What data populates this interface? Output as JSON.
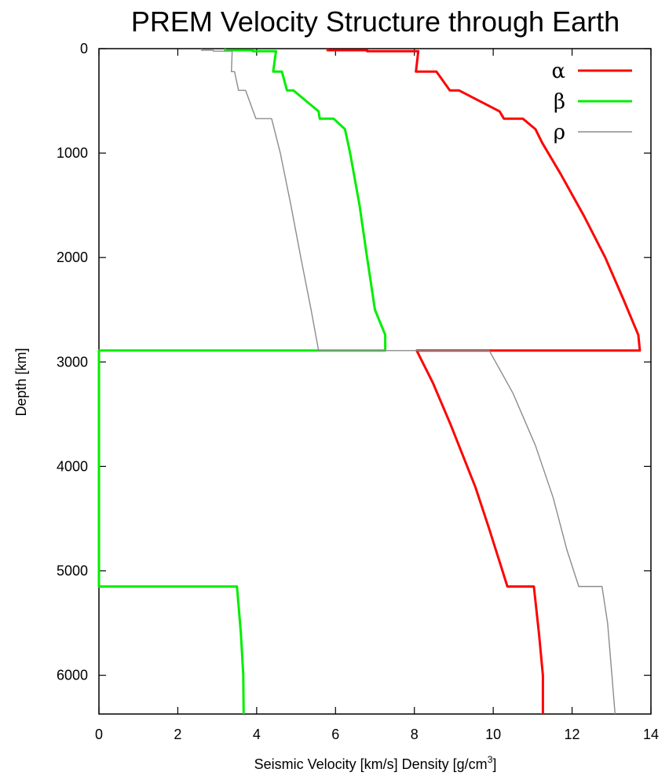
{
  "chart_data": {
    "type": "line",
    "title": "PREM Velocity Structure through Earth",
    "xlabel_main": "Seismic Velocity [km/s]  Density [g/cm",
    "xlabel_sup": "3",
    "xlabel_end": "]",
    "ylabel": "Depth [km]",
    "xlim": [
      0,
      14
    ],
    "ylim": [
      0,
      6371
    ],
    "y_inverted": true,
    "x_ticks": [
      0,
      2,
      4,
      6,
      8,
      10,
      12,
      14
    ],
    "y_ticks": [
      0,
      1000,
      2000,
      3000,
      4000,
      5000,
      6000
    ],
    "grid": false,
    "legend_position": "top-right",
    "series": [
      {
        "name": "α",
        "color": "#ff0000",
        "points": [
          [
            5.8,
            0
          ],
          [
            5.8,
            15
          ],
          [
            6.8,
            15
          ],
          [
            6.8,
            24
          ],
          [
            8.1,
            24
          ],
          [
            8.04,
            220
          ],
          [
            8.56,
            220
          ],
          [
            8.9,
            400
          ],
          [
            9.13,
            400
          ],
          [
            10.16,
            600
          ],
          [
            10.27,
            670
          ],
          [
            10.75,
            670
          ],
          [
            11.07,
            771
          ],
          [
            11.24,
            900
          ],
          [
            11.71,
            1200
          ],
          [
            12.3,
            1600
          ],
          [
            12.84,
            2000
          ],
          [
            13.3,
            2400
          ],
          [
            13.68,
            2741
          ],
          [
            13.72,
            2891
          ],
          [
            8.06,
            2891
          ],
          [
            8.47,
            3200
          ],
          [
            8.92,
            3600
          ],
          [
            9.55,
            4200
          ],
          [
            9.9,
            4600
          ],
          [
            10.36,
            5150
          ],
          [
            11.03,
            5150
          ],
          [
            11.16,
            5600
          ],
          [
            11.26,
            6000
          ],
          [
            11.26,
            6371
          ]
        ]
      },
      {
        "name": "β",
        "color": "#00ee00",
        "points": [
          [
            3.2,
            0
          ],
          [
            3.2,
            15
          ],
          [
            3.9,
            15
          ],
          [
            3.9,
            24
          ],
          [
            4.49,
            24
          ],
          [
            4.42,
            220
          ],
          [
            4.64,
            220
          ],
          [
            4.77,
            400
          ],
          [
            4.93,
            400
          ],
          [
            5.57,
            600
          ],
          [
            5.6,
            670
          ],
          [
            5.95,
            670
          ],
          [
            6.24,
            771
          ],
          [
            6.37,
            1000
          ],
          [
            6.61,
            1500
          ],
          [
            6.8,
            2000
          ],
          [
            7.0,
            2500
          ],
          [
            7.26,
            2741
          ],
          [
            7.26,
            2891
          ],
          [
            0,
            2891
          ],
          [
            0,
            5150
          ],
          [
            3.5,
            5150
          ],
          [
            3.6,
            5600
          ],
          [
            3.66,
            6000
          ],
          [
            3.67,
            6371
          ]
        ]
      },
      {
        "name": "ρ",
        "color": "#8c8c8c",
        "points": [
          [
            2.6,
            0
          ],
          [
            2.6,
            15
          ],
          [
            2.9,
            15
          ],
          [
            2.9,
            24
          ],
          [
            3.38,
            24
          ],
          [
            3.36,
            220
          ],
          [
            3.44,
            220
          ],
          [
            3.54,
            400
          ],
          [
            3.72,
            400
          ],
          [
            3.98,
            670
          ],
          [
            4.38,
            670
          ],
          [
            4.6,
            1000
          ],
          [
            4.87,
            1500
          ],
          [
            5.12,
            2000
          ],
          [
            5.38,
            2500
          ],
          [
            5.57,
            2891
          ],
          [
            9.9,
            2891
          ],
          [
            10.5,
            3300
          ],
          [
            11.07,
            3800
          ],
          [
            11.52,
            4300
          ],
          [
            11.87,
            4800
          ],
          [
            12.17,
            5150
          ],
          [
            12.76,
            5150
          ],
          [
            12.9,
            5500
          ],
          [
            13.01,
            6000
          ],
          [
            13.09,
            6371
          ]
        ]
      }
    ]
  }
}
